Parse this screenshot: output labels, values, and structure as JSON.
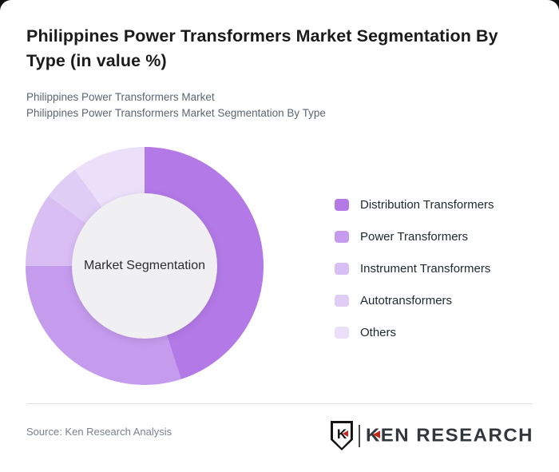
{
  "header": {
    "title": "Philippines Power Transformers Market Segmentation By Type (in value %)",
    "subtitle_line1": "Philippines Power Transformers Market",
    "subtitle_line2": "Philippines Power Transformers Market Segmentation By Type"
  },
  "chart_data": {
    "type": "pie",
    "variant": "donut",
    "title": "Philippines Power Transformers Market Segmentation By Type (in value %)",
    "center_label": "Market Segmentation",
    "categories": [
      "Distribution Transformers",
      "Power Transformers",
      "Instrument Transformers",
      "Autotransformers",
      "Others"
    ],
    "values": [
      45,
      30,
      10,
      5,
      10
    ],
    "unit": "value %",
    "colors": [
      "#b379e6",
      "#c59bee",
      "#d9bef4",
      "#e0cdf6",
      "#ecdffa"
    ],
    "start_angle_deg": 0,
    "direction": "clockwise",
    "legend_position": "right",
    "inner_circle_color": "#f0eff1",
    "grid": false
  },
  "footer": {
    "source": "Source: Ken Research Analysis",
    "logo": {
      "shield_letter": "K",
      "wordmark_k": "K",
      "wordmark_rest": "EN RESEARCH",
      "accent_color": "#c0281e"
    }
  }
}
